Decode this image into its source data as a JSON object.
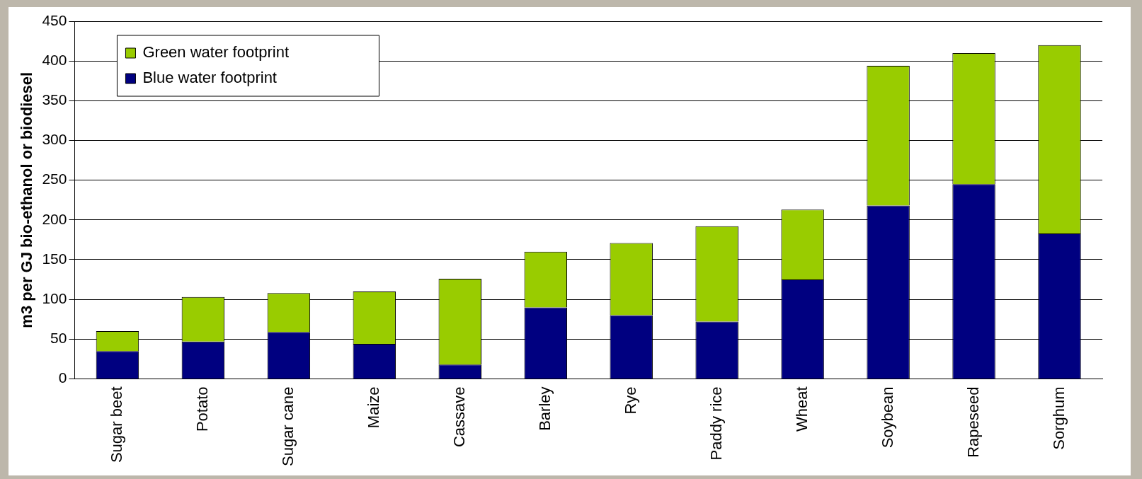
{
  "chart_data": {
    "type": "bar",
    "stacked": true,
    "ylabel": "m3 per GJ bio-ethanol or biodiesel",
    "categories": [
      "Sugar beet",
      "Potato",
      "Sugar cane",
      "Maize",
      "Cassave",
      "Barley",
      "Rye",
      "Paddy rice",
      "Wheat",
      "Soybean",
      "Rapeseed",
      "Sorghum"
    ],
    "series": [
      {
        "name": "Blue water footprint",
        "color": "#000080",
        "values": [
          35,
          47,
          59,
          44,
          18,
          90,
          80,
          72,
          125,
          218,
          245,
          183
        ]
      },
      {
        "name": "Green water footprint",
        "color": "#99cc00",
        "values": [
          25,
          56,
          49,
          66,
          108,
          70,
          91,
          120,
          88,
          176,
          165,
          237
        ]
      }
    ],
    "ylim": [
      0,
      450
    ],
    "yticks": [
      0,
      50,
      100,
      150,
      200,
      250,
      300,
      350,
      400,
      450
    ],
    "grid": "y",
    "legend": "top left"
  }
}
